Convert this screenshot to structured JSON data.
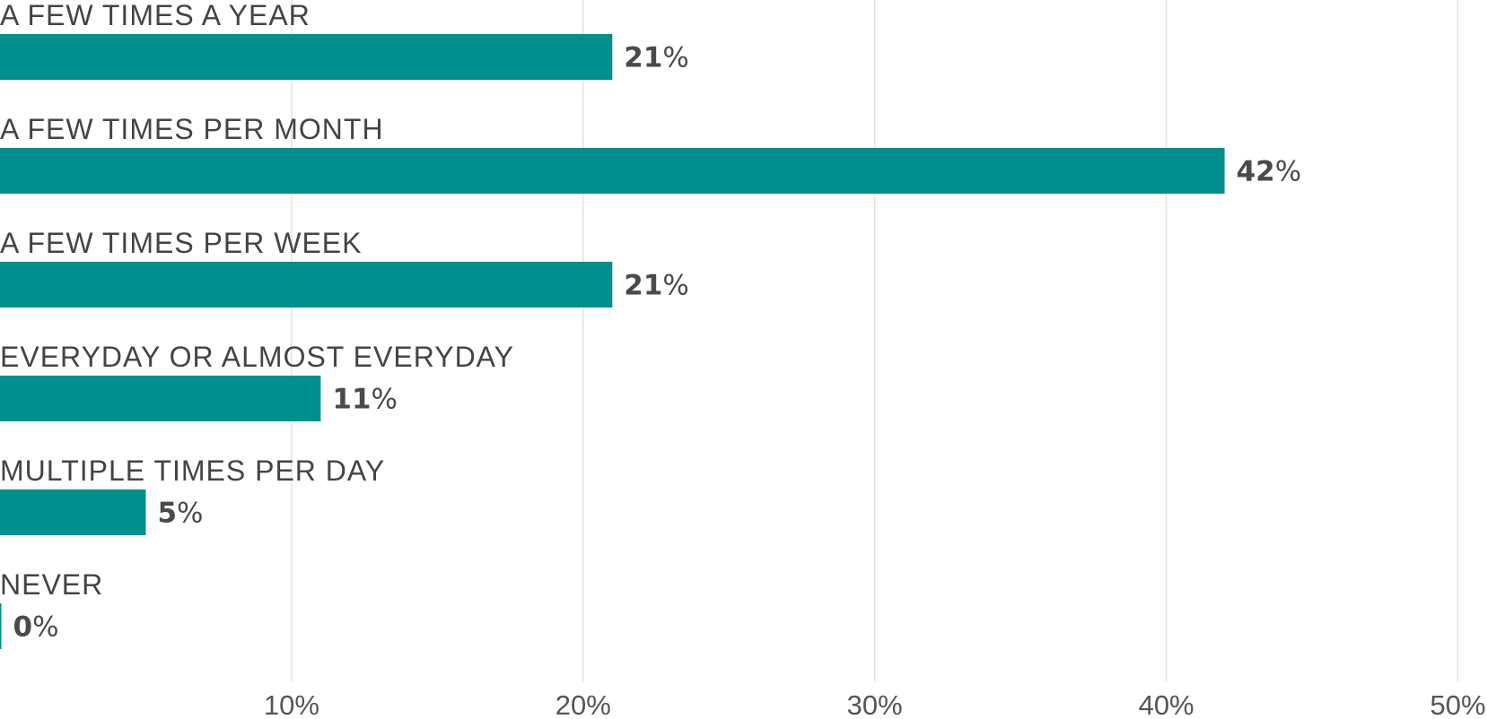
{
  "chart_data": {
    "type": "bar",
    "orientation": "horizontal",
    "categories": [
      "A FEW TIMES A YEAR",
      "A FEW TIMES PER MONTH",
      "A FEW TIMES PER WEEK",
      "EVERYDAY OR ALMOST EVERYDAY",
      "MULTIPLE TIMES PER DAY",
      "NEVER"
    ],
    "values": [
      21,
      42,
      21,
      11,
      5,
      0
    ],
    "value_labels": [
      "21",
      "42",
      "21",
      "11",
      "5",
      "0"
    ],
    "value_suffix": "%",
    "xlim": [
      0,
      51
    ],
    "ticks": [
      10,
      20,
      30,
      40,
      50
    ],
    "tick_labels": [
      "10%",
      "20%",
      "30%",
      "40%",
      "50%"
    ],
    "grid": true,
    "legend": "none",
    "title": "",
    "xlabel": "",
    "ylabel": "",
    "colors": {
      "bar": "#008f8c",
      "text": "#444444",
      "grid": "#e4e4e4"
    }
  }
}
